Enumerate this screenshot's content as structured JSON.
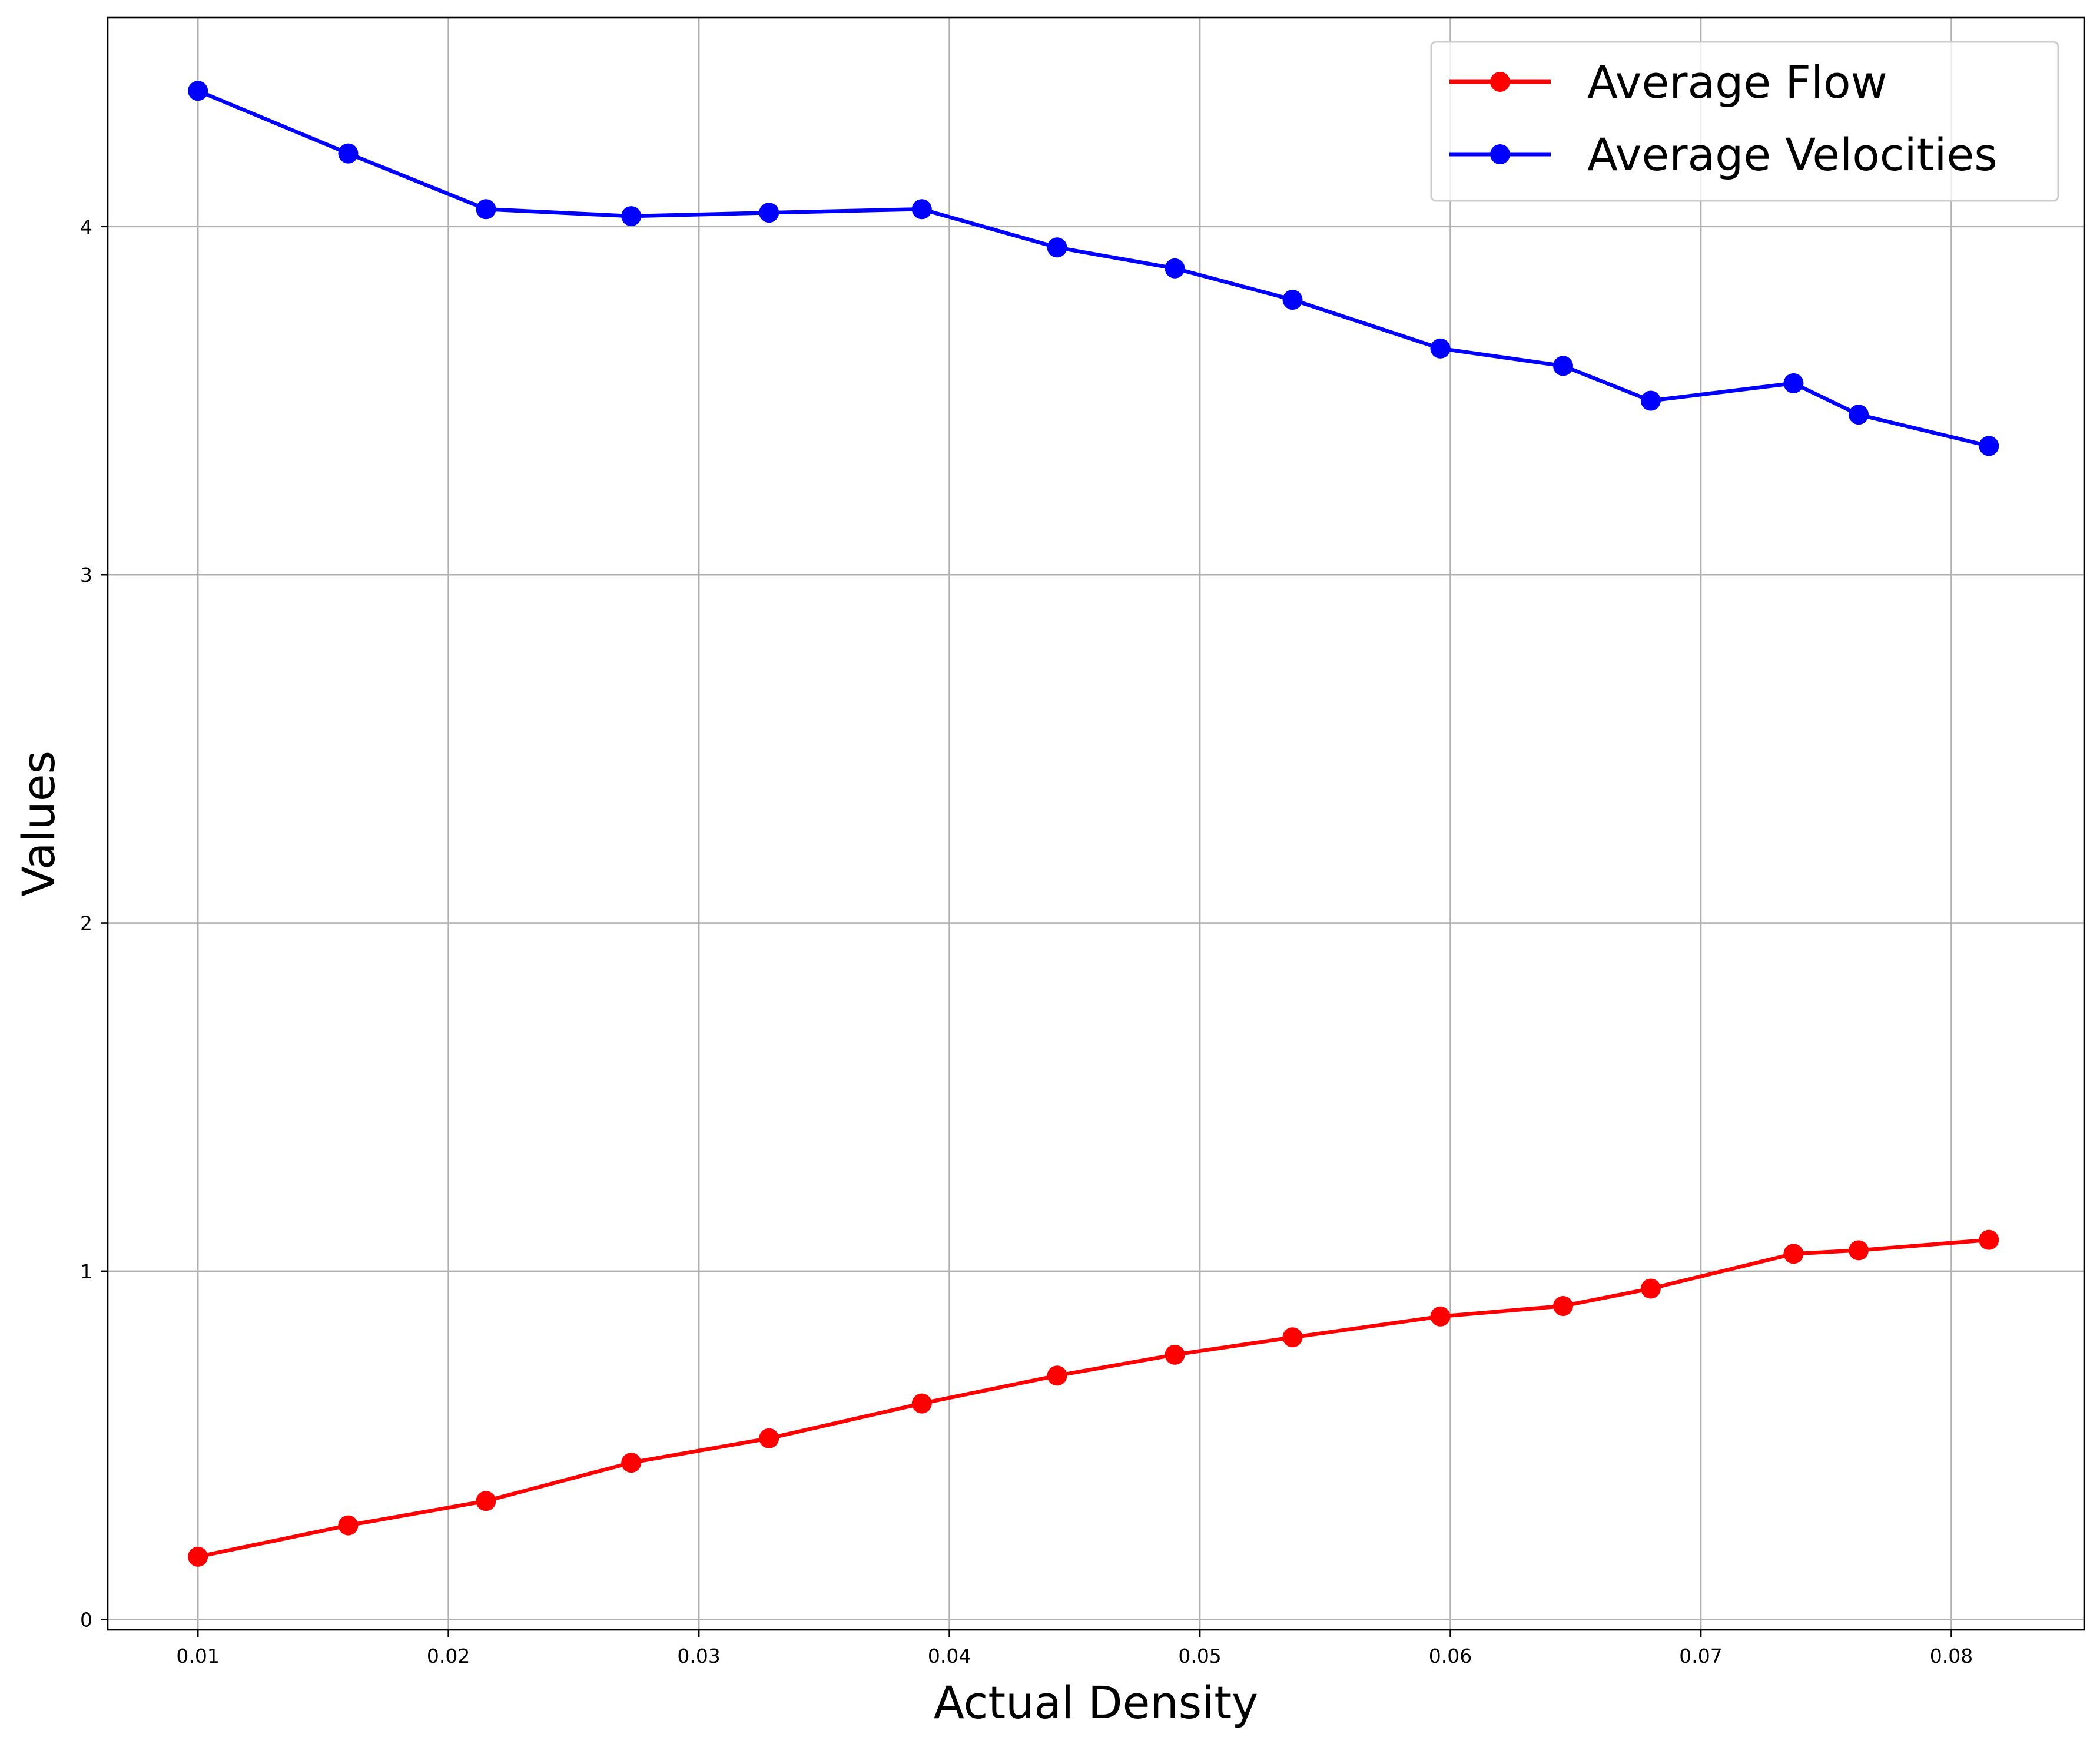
{
  "chart_data": {
    "type": "line",
    "xlabel": "Actual Density",
    "ylabel": "Values",
    "xlim": [
      0.0064,
      0.0853
    ],
    "ylim": [
      -0.03,
      4.6
    ],
    "x_ticks": [
      0.01,
      0.02,
      0.03,
      0.04,
      0.05,
      0.06,
      0.07,
      0.08
    ],
    "x_tick_labels": [
      "0.01",
      "0.02",
      "0.03",
      "0.04",
      "0.05",
      "0.06",
      "0.07",
      "0.08"
    ],
    "y_ticks": [
      0,
      1,
      2,
      3,
      4
    ],
    "y_tick_labels": [
      "0",
      "1",
      "2",
      "3",
      "4"
    ],
    "grid": true,
    "legend_position": "top-right",
    "x": [
      0.01,
      0.016,
      0.0215,
      0.0273,
      0.0328,
      0.0389,
      0.0443,
      0.049,
      0.0537,
      0.0596,
      0.0645,
      0.068,
      0.0737,
      0.0763,
      0.0815
    ],
    "series": [
      {
        "name": "Average Flow",
        "color": "#ff0000",
        "marker": "circle",
        "values": [
          0.18,
          0.27,
          0.34,
          0.45,
          0.52,
          0.62,
          0.7,
          0.76,
          0.81,
          0.87,
          0.9,
          0.95,
          1.05,
          1.06,
          1.09
        ]
      },
      {
        "name": "Average Velocities",
        "color": "#0000ff",
        "marker": "circle",
        "values": [
          4.39,
          4.21,
          4.05,
          4.03,
          4.04,
          4.05,
          3.94,
          3.88,
          3.79,
          3.65,
          3.6,
          3.5,
          3.55,
          3.46,
          3.37
        ]
      }
    ]
  }
}
